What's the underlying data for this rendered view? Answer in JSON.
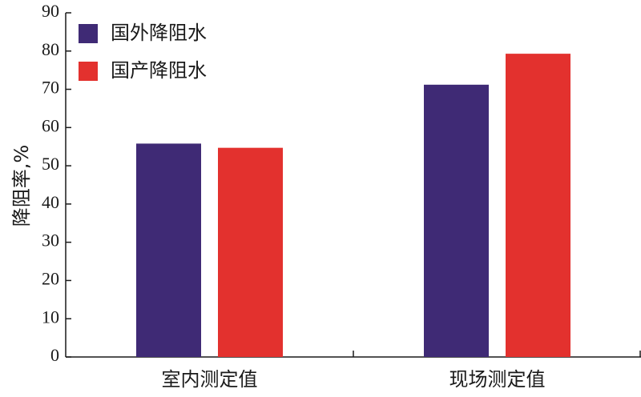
{
  "chart_data": {
    "type": "bar",
    "title": "",
    "xlabel": "",
    "ylabel": "降阻率,%",
    "ylim": [
      0,
      90
    ],
    "yticks": [
      0,
      10,
      20,
      30,
      40,
      50,
      60,
      70,
      80,
      90
    ],
    "categories": [
      "室内测定值",
      "现场测定值"
    ],
    "series": [
      {
        "name": "国外降阻水",
        "color": "#3f2a75",
        "values": [
          55.8,
          71.2
        ]
      },
      {
        "name": "国产降阻水",
        "color": "#e3312e",
        "values": [
          54.7,
          79.3
        ]
      }
    ],
    "legend_position": "top-left",
    "grid": false
  }
}
